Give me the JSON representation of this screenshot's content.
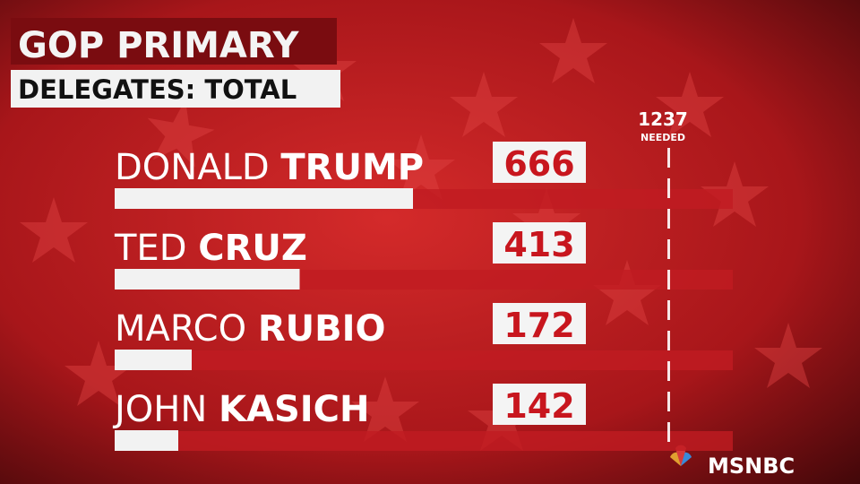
{
  "chart_data": {
    "type": "bar",
    "title": "GOP PRIMARY",
    "subtitle": "DELEGATES: TOTAL",
    "categories": [
      "DONALD TRUMP",
      "TED CRUZ",
      "MARCO RUBIO",
      "JOHN KASICH"
    ],
    "values": [
      666,
      413,
      172,
      142
    ],
    "color": "#f2f2f2",
    "xlim": [
      0,
      1380
    ],
    "threshold": 1237,
    "threshold_label": "NEEDED"
  },
  "logo": "MSNBC"
}
